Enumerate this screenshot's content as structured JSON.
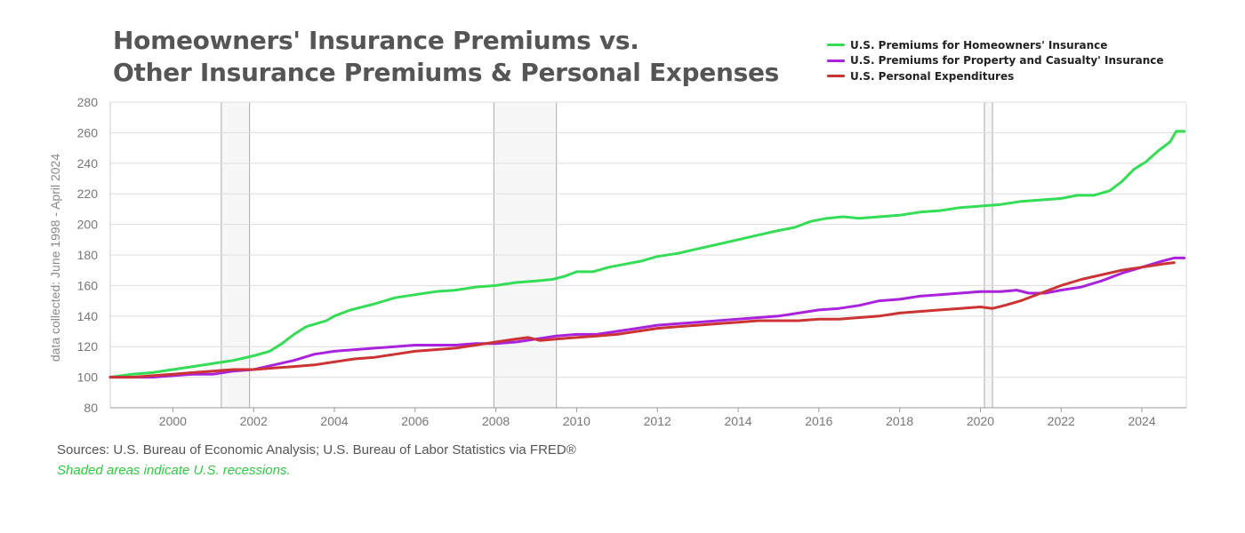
{
  "colors": {
    "homeowners": "#33dd55",
    "property_casualty": "#aa22dd",
    "personal_expenditures": "#cc3333",
    "grid": "#dddddd",
    "axis_text": "#777777"
  },
  "footer": {
    "sources": "Sources: U.S. Bureau of Economic Analysis; U.S. Bureau of Labor Statistics via FRED®",
    "note": "Shaded areas indicate U.S. recessions."
  },
  "chart_data": {
    "type": "line",
    "title_lines": [
      "Homeowners' Insurance Premiums vs.",
      "Other Insurance Premiums & Personal Expenses"
    ],
    "ylabel": "data collected: June 1998 - April 2024",
    "xlabel": "",
    "ylim": [
      80,
      280
    ],
    "yticks": [
      80,
      100,
      120,
      140,
      160,
      180,
      200,
      220,
      240,
      260,
      280
    ],
    "xlim": [
      1998.45,
      2025.1
    ],
    "xticks": [
      2000,
      2002,
      2004,
      2006,
      2008,
      2010,
      2012,
      2014,
      2016,
      2018,
      2020,
      2022,
      2024
    ],
    "grid": "horizontal",
    "legend": "top-right",
    "recessions": [
      [
        2001.2,
        2001.9
      ],
      [
        2007.95,
        2009.5
      ],
      [
        2020.1,
        2020.3
      ]
    ],
    "series": [
      {
        "name": "U.S. Premiums for Homeowners' Insurance",
        "color": "#33dd55",
        "points": [
          [
            1998.45,
            100
          ],
          [
            1999,
            102
          ],
          [
            1999.5,
            103
          ],
          [
            2000,
            105
          ],
          [
            2000.5,
            107
          ],
          [
            2001,
            109
          ],
          [
            2001.5,
            111
          ],
          [
            2002,
            114
          ],
          [
            2002.4,
            117
          ],
          [
            2002.7,
            122
          ],
          [
            2003,
            128
          ],
          [
            2003.3,
            133
          ],
          [
            2003.8,
            137
          ],
          [
            2004,
            140
          ],
          [
            2004.4,
            144
          ],
          [
            2005,
            148
          ],
          [
            2005.5,
            152
          ],
          [
            2006,
            154
          ],
          [
            2006.5,
            156
          ],
          [
            2007,
            157
          ],
          [
            2007.5,
            159
          ],
          [
            2008,
            160
          ],
          [
            2008.5,
            162
          ],
          [
            2009,
            163
          ],
          [
            2009.4,
            164
          ],
          [
            2009.7,
            166
          ],
          [
            2010,
            169
          ],
          [
            2010.4,
            169
          ],
          [
            2010.8,
            172
          ],
          [
            2011.2,
            174
          ],
          [
            2011.6,
            176
          ],
          [
            2012,
            179
          ],
          [
            2012.5,
            181
          ],
          [
            2013,
            184
          ],
          [
            2013.5,
            187
          ],
          [
            2014,
            190
          ],
          [
            2014.5,
            193
          ],
          [
            2015,
            196
          ],
          [
            2015.4,
            198
          ],
          [
            2015.8,
            202
          ],
          [
            2016.2,
            204
          ],
          [
            2016.6,
            205
          ],
          [
            2017,
            204
          ],
          [
            2017.5,
            205
          ],
          [
            2018,
            206
          ],
          [
            2018.5,
            208
          ],
          [
            2019,
            209
          ],
          [
            2019.5,
            211
          ],
          [
            2020,
            212
          ],
          [
            2020.5,
            213
          ],
          [
            2021,
            215
          ],
          [
            2021.5,
            216
          ],
          [
            2022,
            217
          ],
          [
            2022.4,
            219
          ],
          [
            2022.8,
            219
          ],
          [
            2023.2,
            222
          ],
          [
            2023.5,
            228
          ],
          [
            2023.8,
            236
          ],
          [
            2024.1,
            241
          ],
          [
            2024.4,
            248
          ],
          [
            2024.7,
            254
          ],
          [
            2024.85,
            261
          ],
          [
            2025.05,
            261
          ]
        ]
      },
      {
        "name": "U.S. Premiums for Property and Casualty' Insurance",
        "color": "#aa22dd",
        "points": [
          [
            1998.45,
            100
          ],
          [
            1999,
            100
          ],
          [
            1999.5,
            100
          ],
          [
            2000,
            101
          ],
          [
            2000.5,
            102
          ],
          [
            2001,
            102
          ],
          [
            2001.5,
            104
          ],
          [
            2002,
            105
          ],
          [
            2002.5,
            108
          ],
          [
            2003,
            111
          ],
          [
            2003.5,
            115
          ],
          [
            2004,
            117
          ],
          [
            2004.5,
            118
          ],
          [
            2005,
            119
          ],
          [
            2005.5,
            120
          ],
          [
            2006,
            121
          ],
          [
            2006.5,
            121
          ],
          [
            2007,
            121
          ],
          [
            2007.5,
            122
          ],
          [
            2008,
            122
          ],
          [
            2008.5,
            123
          ],
          [
            2009,
            125
          ],
          [
            2009.5,
            127
          ],
          [
            2010,
            128
          ],
          [
            2010.5,
            128
          ],
          [
            2011,
            130
          ],
          [
            2011.5,
            132
          ],
          [
            2012,
            134
          ],
          [
            2012.5,
            135
          ],
          [
            2013,
            136
          ],
          [
            2013.5,
            137
          ],
          [
            2014,
            138
          ],
          [
            2014.5,
            139
          ],
          [
            2015,
            140
          ],
          [
            2015.5,
            142
          ],
          [
            2016,
            144
          ],
          [
            2016.5,
            145
          ],
          [
            2017,
            147
          ],
          [
            2017.5,
            150
          ],
          [
            2018,
            151
          ],
          [
            2018.5,
            153
          ],
          [
            2019,
            154
          ],
          [
            2019.5,
            155
          ],
          [
            2020,
            156
          ],
          [
            2020.5,
            156
          ],
          [
            2020.9,
            157
          ],
          [
            2021.2,
            155
          ],
          [
            2021.6,
            155
          ],
          [
            2022,
            157
          ],
          [
            2022.5,
            159
          ],
          [
            2023,
            163
          ],
          [
            2023.5,
            168
          ],
          [
            2024,
            172
          ],
          [
            2024.5,
            176
          ],
          [
            2024.8,
            178
          ],
          [
            2025.05,
            178
          ]
        ]
      },
      {
        "name": "U.S. Personal Expenditures",
        "color": "#cc3333",
        "points": [
          [
            1998.45,
            100
          ],
          [
            1999,
            100
          ],
          [
            1999.5,
            101
          ],
          [
            2000,
            102
          ],
          [
            2000.5,
            103
          ],
          [
            2001,
            104
          ],
          [
            2001.5,
            105
          ],
          [
            2002,
            105
          ],
          [
            2002.5,
            106
          ],
          [
            2003,
            107
          ],
          [
            2003.5,
            108
          ],
          [
            2004,
            110
          ],
          [
            2004.5,
            112
          ],
          [
            2005,
            113
          ],
          [
            2005.5,
            115
          ],
          [
            2006,
            117
          ],
          [
            2006.5,
            118
          ],
          [
            2007,
            119
          ],
          [
            2007.5,
            121
          ],
          [
            2008,
            123
          ],
          [
            2008.5,
            125
          ],
          [
            2008.8,
            126
          ],
          [
            2009.1,
            124
          ],
          [
            2009.5,
            125
          ],
          [
            2010,
            126
          ],
          [
            2010.5,
            127
          ],
          [
            2011,
            128
          ],
          [
            2011.5,
            130
          ],
          [
            2012,
            132
          ],
          [
            2012.5,
            133
          ],
          [
            2013,
            134
          ],
          [
            2013.5,
            135
          ],
          [
            2014,
            136
          ],
          [
            2014.5,
            137
          ],
          [
            2015,
            137
          ],
          [
            2015.5,
            137
          ],
          [
            2016,
            138
          ],
          [
            2016.5,
            138
          ],
          [
            2017,
            139
          ],
          [
            2017.5,
            140
          ],
          [
            2018,
            142
          ],
          [
            2018.5,
            143
          ],
          [
            2019,
            144
          ],
          [
            2019.5,
            145
          ],
          [
            2020,
            146
          ],
          [
            2020.3,
            145
          ],
          [
            2020.6,
            147
          ],
          [
            2021,
            150
          ],
          [
            2021.5,
            155
          ],
          [
            2022,
            160
          ],
          [
            2022.5,
            164
          ],
          [
            2023,
            167
          ],
          [
            2023.5,
            170
          ],
          [
            2024,
            172
          ],
          [
            2024.5,
            174
          ],
          [
            2024.8,
            175
          ]
        ]
      }
    ]
  }
}
